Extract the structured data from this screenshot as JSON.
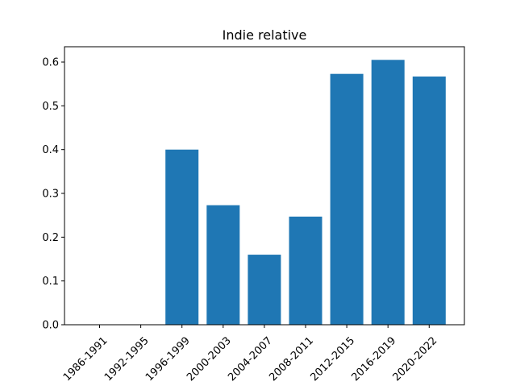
{
  "chart_data": {
    "type": "bar",
    "title": "Indie relative",
    "xlabel": "",
    "ylabel": "",
    "categories": [
      "1986-1991",
      "1992-1995",
      "1996-1999",
      "2000-2003",
      "2004-2007",
      "2008-2011",
      "2012-2015",
      "2016-2019",
      "2020-2022"
    ],
    "values": [
      0.0,
      0.0,
      0.4,
      0.273,
      0.16,
      0.247,
      0.573,
      0.605,
      0.567
    ],
    "ylim": [
      0,
      0.635
    ],
    "yticks": [
      0.0,
      0.1,
      0.2,
      0.3,
      0.4,
      0.5,
      0.6
    ],
    "ytick_labels": [
      "0.0",
      "0.1",
      "0.2",
      "0.3",
      "0.4",
      "0.5",
      "0.6"
    ],
    "bar_color": "#1f77b4",
    "grid": false,
    "legend": "none"
  }
}
